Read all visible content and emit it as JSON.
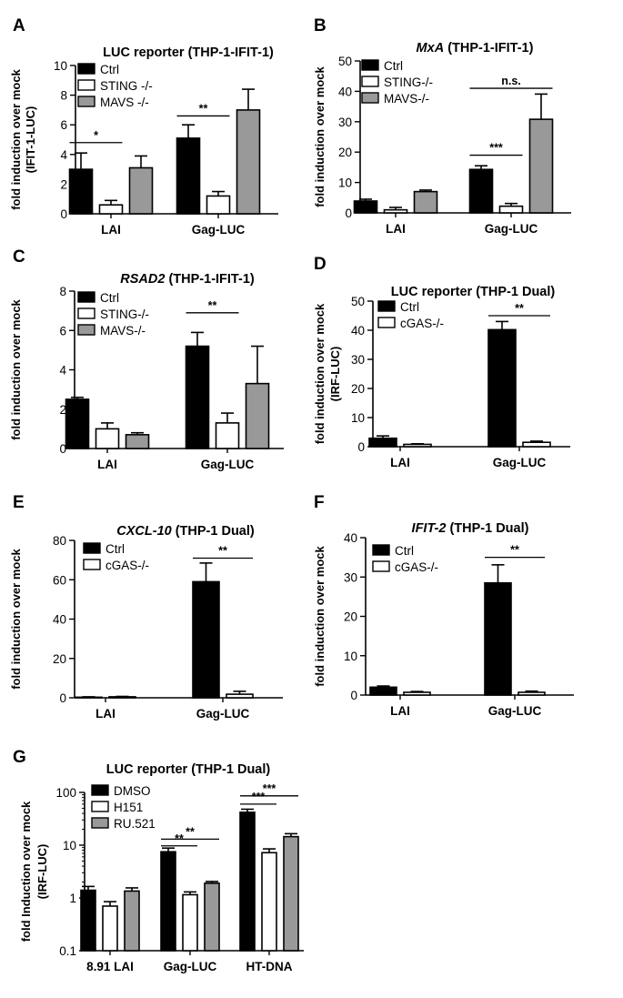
{
  "chart_data": [
    {
      "panel": "A",
      "type": "bar",
      "title": "LUC reporter (THP-1-IFIT-1)",
      "ylabel": "fold induction over mock",
      "ylabel2": "(IFIT-1-LUC)",
      "yscale": "linear",
      "ylim": [
        0,
        10
      ],
      "yticks": [
        0,
        2,
        4,
        6,
        8,
        10
      ],
      "categories": [
        "LAI",
        "Gag-LUC"
      ],
      "series": [
        {
          "name": "Ctrl",
          "fill": "#000000",
          "values": [
            3.0,
            5.1
          ],
          "errors": [
            1.1,
            0.9
          ]
        },
        {
          "name": "STING -/-",
          "fill": "#ffffff",
          "values": [
            0.6,
            1.2
          ],
          "errors": [
            0.3,
            0.3
          ]
        },
        {
          "name": "MAVS -/-",
          "fill": "#999999",
          "values": [
            3.1,
            7.0
          ],
          "errors": [
            0.8,
            1.4
          ]
        }
      ],
      "significance": [
        {
          "label": "*",
          "category": 0,
          "from": 0,
          "to": 1,
          "y": 4.8
        },
        {
          "label": "**",
          "category": 1,
          "from": 0,
          "to": 1,
          "y": 6.6
        }
      ]
    },
    {
      "panel": "B",
      "type": "bar",
      "title": "(THP-1-IFIT-1)",
      "title_italic": "MxA",
      "ylabel": "fold induction over mock",
      "yscale": "linear",
      "ylim": [
        0,
        50
      ],
      "yticks": [
        0,
        10,
        20,
        30,
        40,
        50
      ],
      "categories": [
        "LAI",
        "Gag-LUC"
      ],
      "series": [
        {
          "name": "Ctrl",
          "fill": "#000000",
          "values": [
            3.9,
            14.3
          ],
          "errors": [
            0.6,
            1.2
          ]
        },
        {
          "name": "STING-/-",
          "fill": "#ffffff",
          "values": [
            1.0,
            2.2
          ],
          "errors": [
            0.8,
            0.9
          ]
        },
        {
          "name": "MAVS-/-",
          "fill": "#999999",
          "values": [
            7.0,
            30.8
          ],
          "errors": [
            0.5,
            8.3
          ]
        }
      ],
      "significance": [
        {
          "label": "n.s.",
          "category": 1,
          "from": 0,
          "to": 2,
          "y": 41
        },
        {
          "label": "***",
          "category": 1,
          "from": 0,
          "to": 1,
          "y": 19
        }
      ]
    },
    {
      "panel": "C",
      "type": "bar",
      "title": "(THP-1-IFIT-1)",
      "title_italic": "RSAD2",
      "ylabel": "fold induction over mock",
      "yscale": "linear",
      "ylim": [
        0,
        8
      ],
      "yticks": [
        0,
        2,
        4,
        6,
        8
      ],
      "categories": [
        "LAI",
        "Gag-LUC"
      ],
      "series": [
        {
          "name": "Ctrl",
          "fill": "#000000",
          "values": [
            2.5,
            5.2
          ],
          "errors": [
            0.1,
            0.7
          ]
        },
        {
          "name": "STING-/-",
          "fill": "#ffffff",
          "values": [
            1.0,
            1.3
          ],
          "errors": [
            0.3,
            0.5
          ]
        },
        {
          "name": "MAVS-/-",
          "fill": "#999999",
          "values": [
            0.7,
            3.3
          ],
          "errors": [
            0.1,
            1.9
          ]
        }
      ],
      "significance": [
        {
          "label": "**",
          "category": 1,
          "from": 0,
          "to": 1,
          "y": 6.9
        }
      ]
    },
    {
      "panel": "D",
      "type": "bar",
      "title": "LUC reporter (THP-1 Dual)",
      "ylabel": "fold induction over mock",
      "ylabel2": "(IRF-LUC)",
      "yscale": "linear",
      "ylim": [
        0,
        50
      ],
      "yticks": [
        0,
        10,
        20,
        30,
        40,
        50
      ],
      "categories": [
        "LAI",
        "Gag-LUC"
      ],
      "series": [
        {
          "name": "Ctrl",
          "fill": "#000000",
          "values": [
            2.9,
            40.2
          ],
          "errors": [
            0.8,
            2.8
          ]
        },
        {
          "name": "cGAS-/-",
          "fill": "#ffffff",
          "values": [
            0.8,
            1.5
          ],
          "errors": [
            0.2,
            0.4
          ]
        }
      ],
      "significance": [
        {
          "label": "**",
          "category": 1,
          "from": 0,
          "to": 1,
          "y": 45
        }
      ]
    },
    {
      "panel": "E",
      "type": "bar",
      "title": "(THP-1 Dual)",
      "title_italic": "CXCL-10",
      "ylabel": "fold induction over mock",
      "yscale": "linear",
      "ylim": [
        0,
        80
      ],
      "yticks": [
        0,
        20,
        40,
        60,
        80
      ],
      "categories": [
        "LAI",
        "Gag-LUC"
      ],
      "series": [
        {
          "name": "Ctrl",
          "fill": "#000000",
          "values": [
            0.3,
            59.0
          ],
          "errors": [
            0.2,
            9.5
          ]
        },
        {
          "name": "cGAS-/-",
          "fill": "#ffffff",
          "values": [
            0.5,
            1.8
          ],
          "errors": [
            0.2,
            1.5
          ]
        }
      ],
      "significance": [
        {
          "label": "**",
          "category": 1,
          "from": 0,
          "to": 1,
          "y": 71
        }
      ]
    },
    {
      "panel": "F",
      "type": "bar",
      "title": "(THP-1 Dual)",
      "title_italic": "IFIT-2",
      "ylabel": "fold induction over mock",
      "yscale": "linear",
      "ylim": [
        0,
        40
      ],
      "yticks": [
        0,
        10,
        20,
        30,
        40
      ],
      "categories": [
        "LAI",
        "Gag-LUC"
      ],
      "series": [
        {
          "name": "Ctrl",
          "fill": "#000000",
          "values": [
            2.0,
            28.5
          ],
          "errors": [
            0.3,
            4.6
          ]
        },
        {
          "name": "cGAS-/-",
          "fill": "#ffffff",
          "values": [
            0.7,
            0.7
          ],
          "errors": [
            0.2,
            0.3
          ]
        }
      ],
      "significance": [
        {
          "label": "**",
          "category": 1,
          "from": 0,
          "to": 1,
          "y": 35
        }
      ]
    },
    {
      "panel": "G",
      "type": "bar",
      "title": "LUC reporter (THP-1 Dual)",
      "ylabel": "fold Induction over mock",
      "ylabel2": "(IRF-LUC)",
      "yscale": "log",
      "ylim": [
        0.1,
        100
      ],
      "yticks": [
        0.1,
        1,
        10,
        100
      ],
      "ytick_labels": [
        "0.1",
        "1",
        "10",
        "100"
      ],
      "categories": [
        "8.91 LAI",
        "Gag-LUC",
        "HT-DNA"
      ],
      "series": [
        {
          "name": "DMSO",
          "fill": "#000000",
          "values": [
            1.4,
            7.5,
            42
          ],
          "errors": [
            0.25,
            1.3,
            6
          ]
        },
        {
          "name": "H151",
          "fill": "#ffffff",
          "values": [
            0.7,
            1.15,
            7.2
          ],
          "errors": [
            0.15,
            0.15,
            1.3
          ]
        },
        {
          "name": "RU.521",
          "fill": "#999999",
          "values": [
            1.35,
            1.9,
            14.5
          ],
          "errors": [
            0.2,
            0.15,
            2
          ]
        }
      ],
      "significance": [
        {
          "label": "**",
          "category": 1,
          "from": 0,
          "to": 2,
          "y": 13
        },
        {
          "label": "**",
          "category": 1,
          "from": 0,
          "to": 1,
          "y": 9.7
        },
        {
          "label": "***",
          "category": 2,
          "from": 0,
          "to": 2,
          "y": 86
        },
        {
          "label": "***",
          "category": 2,
          "from": 0,
          "to": 1,
          "y": 60
        }
      ]
    }
  ]
}
